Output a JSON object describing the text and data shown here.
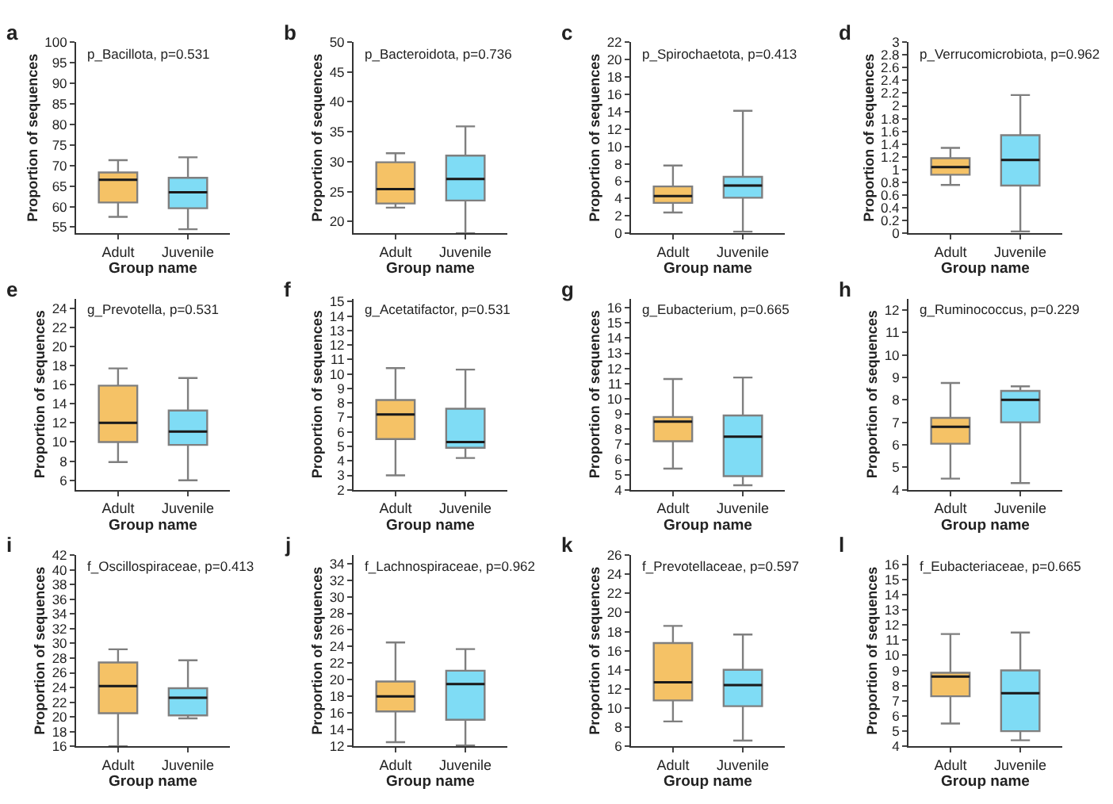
{
  "chart_data": [
    {
      "type": "box",
      "title": "p_Bacillota, p=0.531",
      "annotations": [
        "a"
      ],
      "xlabel": "Group name",
      "ylabel": "Proportion of sequences",
      "categories": [
        "Adult",
        "Juvenile"
      ],
      "colors": [
        "#f5c266",
        "#7fdcf5"
      ],
      "ylim": [
        53.5,
        100
      ],
      "yticks": [
        55,
        60,
        65,
        70,
        75,
        80,
        85,
        90,
        95,
        100
      ],
      "boxes": [
        {
          "low": 57.5,
          "q1": 61,
          "median": 66.5,
          "q3": 68.3,
          "high": 71.3
        },
        {
          "low": 54.5,
          "q1": 59.6,
          "median": 63.5,
          "q3": 67,
          "high": 72
        }
      ]
    },
    {
      "type": "box",
      "title": "p_Bacteroidota, p=0.736",
      "annotations": [
        "b"
      ],
      "xlabel": "Group name",
      "ylabel": "Proportion of sequences",
      "categories": [
        "Adult",
        "Juvenile"
      ],
      "colors": [
        "#f5c266",
        "#7fdcf5"
      ],
      "ylim": [
        18,
        50
      ],
      "yticks": [
        20,
        25,
        30,
        35,
        40,
        45,
        50
      ],
      "boxes": [
        {
          "low": 22.3,
          "q1": 23,
          "median": 25.4,
          "q3": 29.9,
          "high": 31.4
        },
        {
          "low": 18,
          "q1": 23.5,
          "median": 27.1,
          "q3": 31,
          "high": 35.9
        }
      ]
    },
    {
      "type": "box",
      "title": "p_Spirochaetota, p=0.413",
      "annotations": [
        "c"
      ],
      "xlabel": "Group name",
      "ylabel": "Proportion of sequences",
      "categories": [
        "Adult",
        "Juvenile"
      ],
      "colors": [
        "#f5c266",
        "#7fdcf5"
      ],
      "ylim": [
        0,
        22
      ],
      "yticks": [
        0,
        2,
        4,
        6,
        8,
        10,
        12,
        14,
        16,
        18,
        20,
        22
      ],
      "boxes": [
        {
          "low": 2.4,
          "q1": 3.5,
          "median": 4.3,
          "q3": 5.4,
          "high": 7.8
        },
        {
          "low": 0.2,
          "q1": 4.1,
          "median": 5.5,
          "q3": 6.5,
          "high": 14.1
        }
      ]
    },
    {
      "type": "box",
      "title": "p_Verrucomicrobiota, p=0.962",
      "annotations": [
        "d"
      ],
      "xlabel": "Group name",
      "ylabel": "Proportion of sequences",
      "categories": [
        "Adult",
        "Juvenile"
      ],
      "colors": [
        "#f5c266",
        "#7fdcf5"
      ],
      "ylim": [
        0,
        3
      ],
      "yticks": [
        0,
        0.2,
        0.4,
        0.6,
        0.8,
        1,
        1.2,
        1.4,
        1.6,
        1.8,
        2,
        2.2,
        2.4,
        2.6,
        2.8,
        3
      ],
      "boxes": [
        {
          "low": 0.76,
          "q1": 0.92,
          "median": 1.04,
          "q3": 1.18,
          "high": 1.34
        },
        {
          "low": 0.03,
          "q1": 0.75,
          "median": 1.15,
          "q3": 1.54,
          "high": 2.17
        }
      ]
    },
    {
      "type": "box",
      "title": "g_Prevotella, p=0.531",
      "annotations": [
        "e"
      ],
      "xlabel": "Group name",
      "ylabel": "Proportion of sequences",
      "categories": [
        "Adult",
        "Juvenile"
      ],
      "colors": [
        "#f5c266",
        "#7fdcf5"
      ],
      "ylim": [
        5,
        25
      ],
      "yticks": [
        6,
        8,
        10,
        12,
        14,
        16,
        18,
        20,
        22,
        24
      ],
      "boxes": [
        {
          "low": 7.9,
          "q1": 10,
          "median": 12,
          "q3": 15.9,
          "high": 17.7
        },
        {
          "low": 6,
          "q1": 9.7,
          "median": 11.1,
          "q3": 13.3,
          "high": 16.7
        }
      ]
    },
    {
      "type": "box",
      "title": "g_Acetatifactor, p=0.531",
      "annotations": [
        "f"
      ],
      "xlabel": "Group name",
      "ylabel": "Proportion of sequences",
      "categories": [
        "Adult",
        "Juvenile"
      ],
      "colors": [
        "#f5c266",
        "#7fdcf5"
      ],
      "ylim": [
        2,
        15.2
      ],
      "yticks": [
        2,
        3,
        4,
        5,
        6,
        7,
        8,
        9,
        10,
        11,
        12,
        13,
        14,
        15
      ],
      "boxes": [
        {
          "low": 3,
          "q1": 5.5,
          "median": 7.2,
          "q3": 8.2,
          "high": 10.4
        },
        {
          "low": 4.2,
          "q1": 4.9,
          "median": 5.3,
          "q3": 7.6,
          "high": 10.3
        }
      ]
    },
    {
      "type": "box",
      "title": "g_Eubacterium, p=0.665",
      "annotations": [
        "g"
      ],
      "xlabel": "Group name",
      "ylabel": "Proportion of sequences",
      "categories": [
        "Adult",
        "Juvenile"
      ],
      "colors": [
        "#f5c266",
        "#7fdcf5"
      ],
      "ylim": [
        4,
        16.6
      ],
      "yticks": [
        4,
        5,
        6,
        7,
        8,
        9,
        10,
        11,
        12,
        13,
        14,
        15,
        16
      ],
      "boxes": [
        {
          "low": 5.4,
          "q1": 7.2,
          "median": 8.5,
          "q3": 8.8,
          "high": 11.3
        },
        {
          "low": 4.3,
          "q1": 4.9,
          "median": 7.5,
          "q3": 8.9,
          "high": 11.4
        }
      ]
    },
    {
      "type": "box",
      "title": "g_Ruminococcus, p=0.229",
      "annotations": [
        "h"
      ],
      "xlabel": "Group name",
      "ylabel": "Proportion of sequences",
      "categories": [
        "Adult",
        "Juvenile"
      ],
      "colors": [
        "#f5c266",
        "#7fdcf5"
      ],
      "ylim": [
        4,
        12.5
      ],
      "yticks": [
        4,
        5,
        6,
        7,
        8,
        9,
        10,
        11,
        12
      ],
      "boxes": [
        {
          "low": 4.5,
          "q1": 6.05,
          "median": 6.8,
          "q3": 7.2,
          "high": 8.75
        },
        {
          "low": 4.3,
          "q1": 7,
          "median": 8,
          "q3": 8.4,
          "high": 8.6
        }
      ]
    },
    {
      "type": "box",
      "title": "f_Oscillospiraceae, p=0.413",
      "annotations": [
        "i"
      ],
      "xlabel": "Group name",
      "ylabel": "Proportion of sequences",
      "categories": [
        "Adult",
        "Juvenile"
      ],
      "colors": [
        "#f5c266",
        "#7fdcf5"
      ],
      "ylim": [
        16,
        42
      ],
      "yticks": [
        16,
        18,
        20,
        22,
        24,
        26,
        28,
        30,
        32,
        34,
        36,
        38,
        40,
        42
      ],
      "boxes": [
        {
          "low": 16,
          "q1": 20.5,
          "median": 24.2,
          "q3": 27.4,
          "high": 29.2
        },
        {
          "low": 19.8,
          "q1": 20.2,
          "median": 22.6,
          "q3": 23.9,
          "high": 27.7
        }
      ]
    },
    {
      "type": "box",
      "title": "f_Lachnospiraceae, p=0.962",
      "annotations": [
        "j"
      ],
      "xlabel": "Group name",
      "ylabel": "Proportion of sequences",
      "categories": [
        "Adult",
        "Juvenile"
      ],
      "colors": [
        "#f5c266",
        "#7fdcf5"
      ],
      "ylim": [
        12,
        35
      ],
      "yticks": [
        12,
        14,
        16,
        18,
        20,
        22,
        24,
        26,
        28,
        30,
        32,
        34
      ],
      "boxes": [
        {
          "low": 12.5,
          "q1": 16.2,
          "median": 18,
          "q3": 19.8,
          "high": 24.5
        },
        {
          "low": 12.1,
          "q1": 15.2,
          "median": 19.5,
          "q3": 21.1,
          "high": 23.7
        }
      ]
    },
    {
      "type": "box",
      "title": "f_Prevotellaceae, p=0.597",
      "annotations": [
        "k"
      ],
      "xlabel": "Group name",
      "ylabel": "Proportion of sequences",
      "categories": [
        "Adult",
        "Juvenile"
      ],
      "colors": [
        "#f5c266",
        "#7fdcf5"
      ],
      "ylim": [
        6,
        26
      ],
      "yticks": [
        6,
        8,
        10,
        12,
        14,
        16,
        18,
        20,
        22,
        24,
        26
      ],
      "boxes": [
        {
          "low": 8.6,
          "q1": 10.8,
          "median": 12.7,
          "q3": 16.8,
          "high": 18.6
        },
        {
          "low": 6.6,
          "q1": 10.2,
          "median": 12.4,
          "q3": 14,
          "high": 17.7
        }
      ]
    },
    {
      "type": "box",
      "title": "f_Eubacteriaceae, p=0.665",
      "annotations": [
        "l"
      ],
      "xlabel": "Group name",
      "ylabel": "Proportion of sequences",
      "categories": [
        "Adult",
        "Juvenile"
      ],
      "colors": [
        "#f5c266",
        "#7fdcf5"
      ],
      "ylim": [
        4,
        16.6
      ],
      "yticks": [
        4,
        5,
        6,
        7,
        8,
        9,
        10,
        11,
        12,
        13,
        14,
        15,
        16
      ],
      "boxes": [
        {
          "low": 5.5,
          "q1": 7.3,
          "median": 8.6,
          "q3": 8.85,
          "high": 11.4
        },
        {
          "low": 4.4,
          "q1": 5,
          "median": 7.5,
          "q3": 9,
          "high": 11.5
        }
      ]
    }
  ]
}
